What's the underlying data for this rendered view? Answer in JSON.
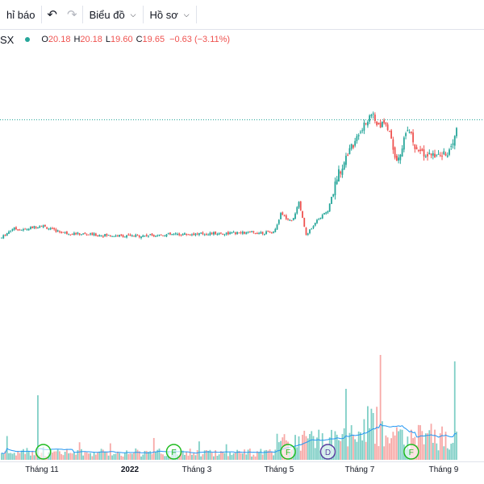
{
  "toolbar": {
    "indicators_label": "hỉ báo",
    "chart_label": "Biểu đồ",
    "profile_label": "Hồ sơ"
  },
  "legend": {
    "symbol": "SX",
    "open_key": "O",
    "open": "20.18",
    "high_key": "H",
    "high": "20.18",
    "low_key": "L",
    "low": "19.60",
    "close_key": "C",
    "close": "19.65",
    "change": "−0.63 (−3.11%)"
  },
  "colors": {
    "up": "#26a69a",
    "down": "#ef5350",
    "volume_up": "#7fcfc6",
    "volume_down": "#f7a9a7",
    "ma": "#2196f3",
    "event_f": "#1fbc1f",
    "event_d": "#5a3fa0"
  },
  "x_ticks": [
    "Tháng 11",
    "2022",
    "Tháng 3",
    "Tháng 5",
    "Tháng 7",
    "Tháng 9"
  ],
  "events": [
    {
      "label": "",
      "type": "F",
      "index": 23
    },
    {
      "label": "F",
      "type": "F",
      "index": 95
    },
    {
      "label": "F",
      "type": "F",
      "index": 158
    },
    {
      "label": "D",
      "type": "D",
      "index": 180
    },
    {
      "label": "F",
      "type": "F",
      "index": 226
    }
  ],
  "chart_data": {
    "type": "candlestick",
    "title": "",
    "xlabel": "",
    "ylabel": "",
    "last_close": 19.65,
    "period": "daily, Oct 2021 – Sep 2022",
    "segments": [
      {
        "from": "2021-10",
        "to": "2021-11",
        "price_range": [
          12.4,
          13.3
        ]
      },
      {
        "from": "2021-11",
        "to": "2022-03",
        "price_range": [
          12.3,
          12.8
        ]
      },
      {
        "from": "2022-04",
        "to": "2022-05",
        "price_range": [
          12.6,
          14.8
        ]
      },
      {
        "from": "2022-05",
        "to": "2022-06",
        "price_range": [
          14.0,
          19.9
        ]
      },
      {
        "from": "2022-06",
        "to": "2022-07",
        "price_range": [
          18.6,
          20.8
        ]
      },
      {
        "from": "2022-07",
        "to": "2022-08",
        "price_range": [
          17.0,
          19.9
        ]
      },
      {
        "from": "2022-08",
        "to": "2022-09",
        "price_range": [
          17.1,
          20.2
        ]
      }
    ],
    "volume": "relative daily volume with moving-average line"
  }
}
